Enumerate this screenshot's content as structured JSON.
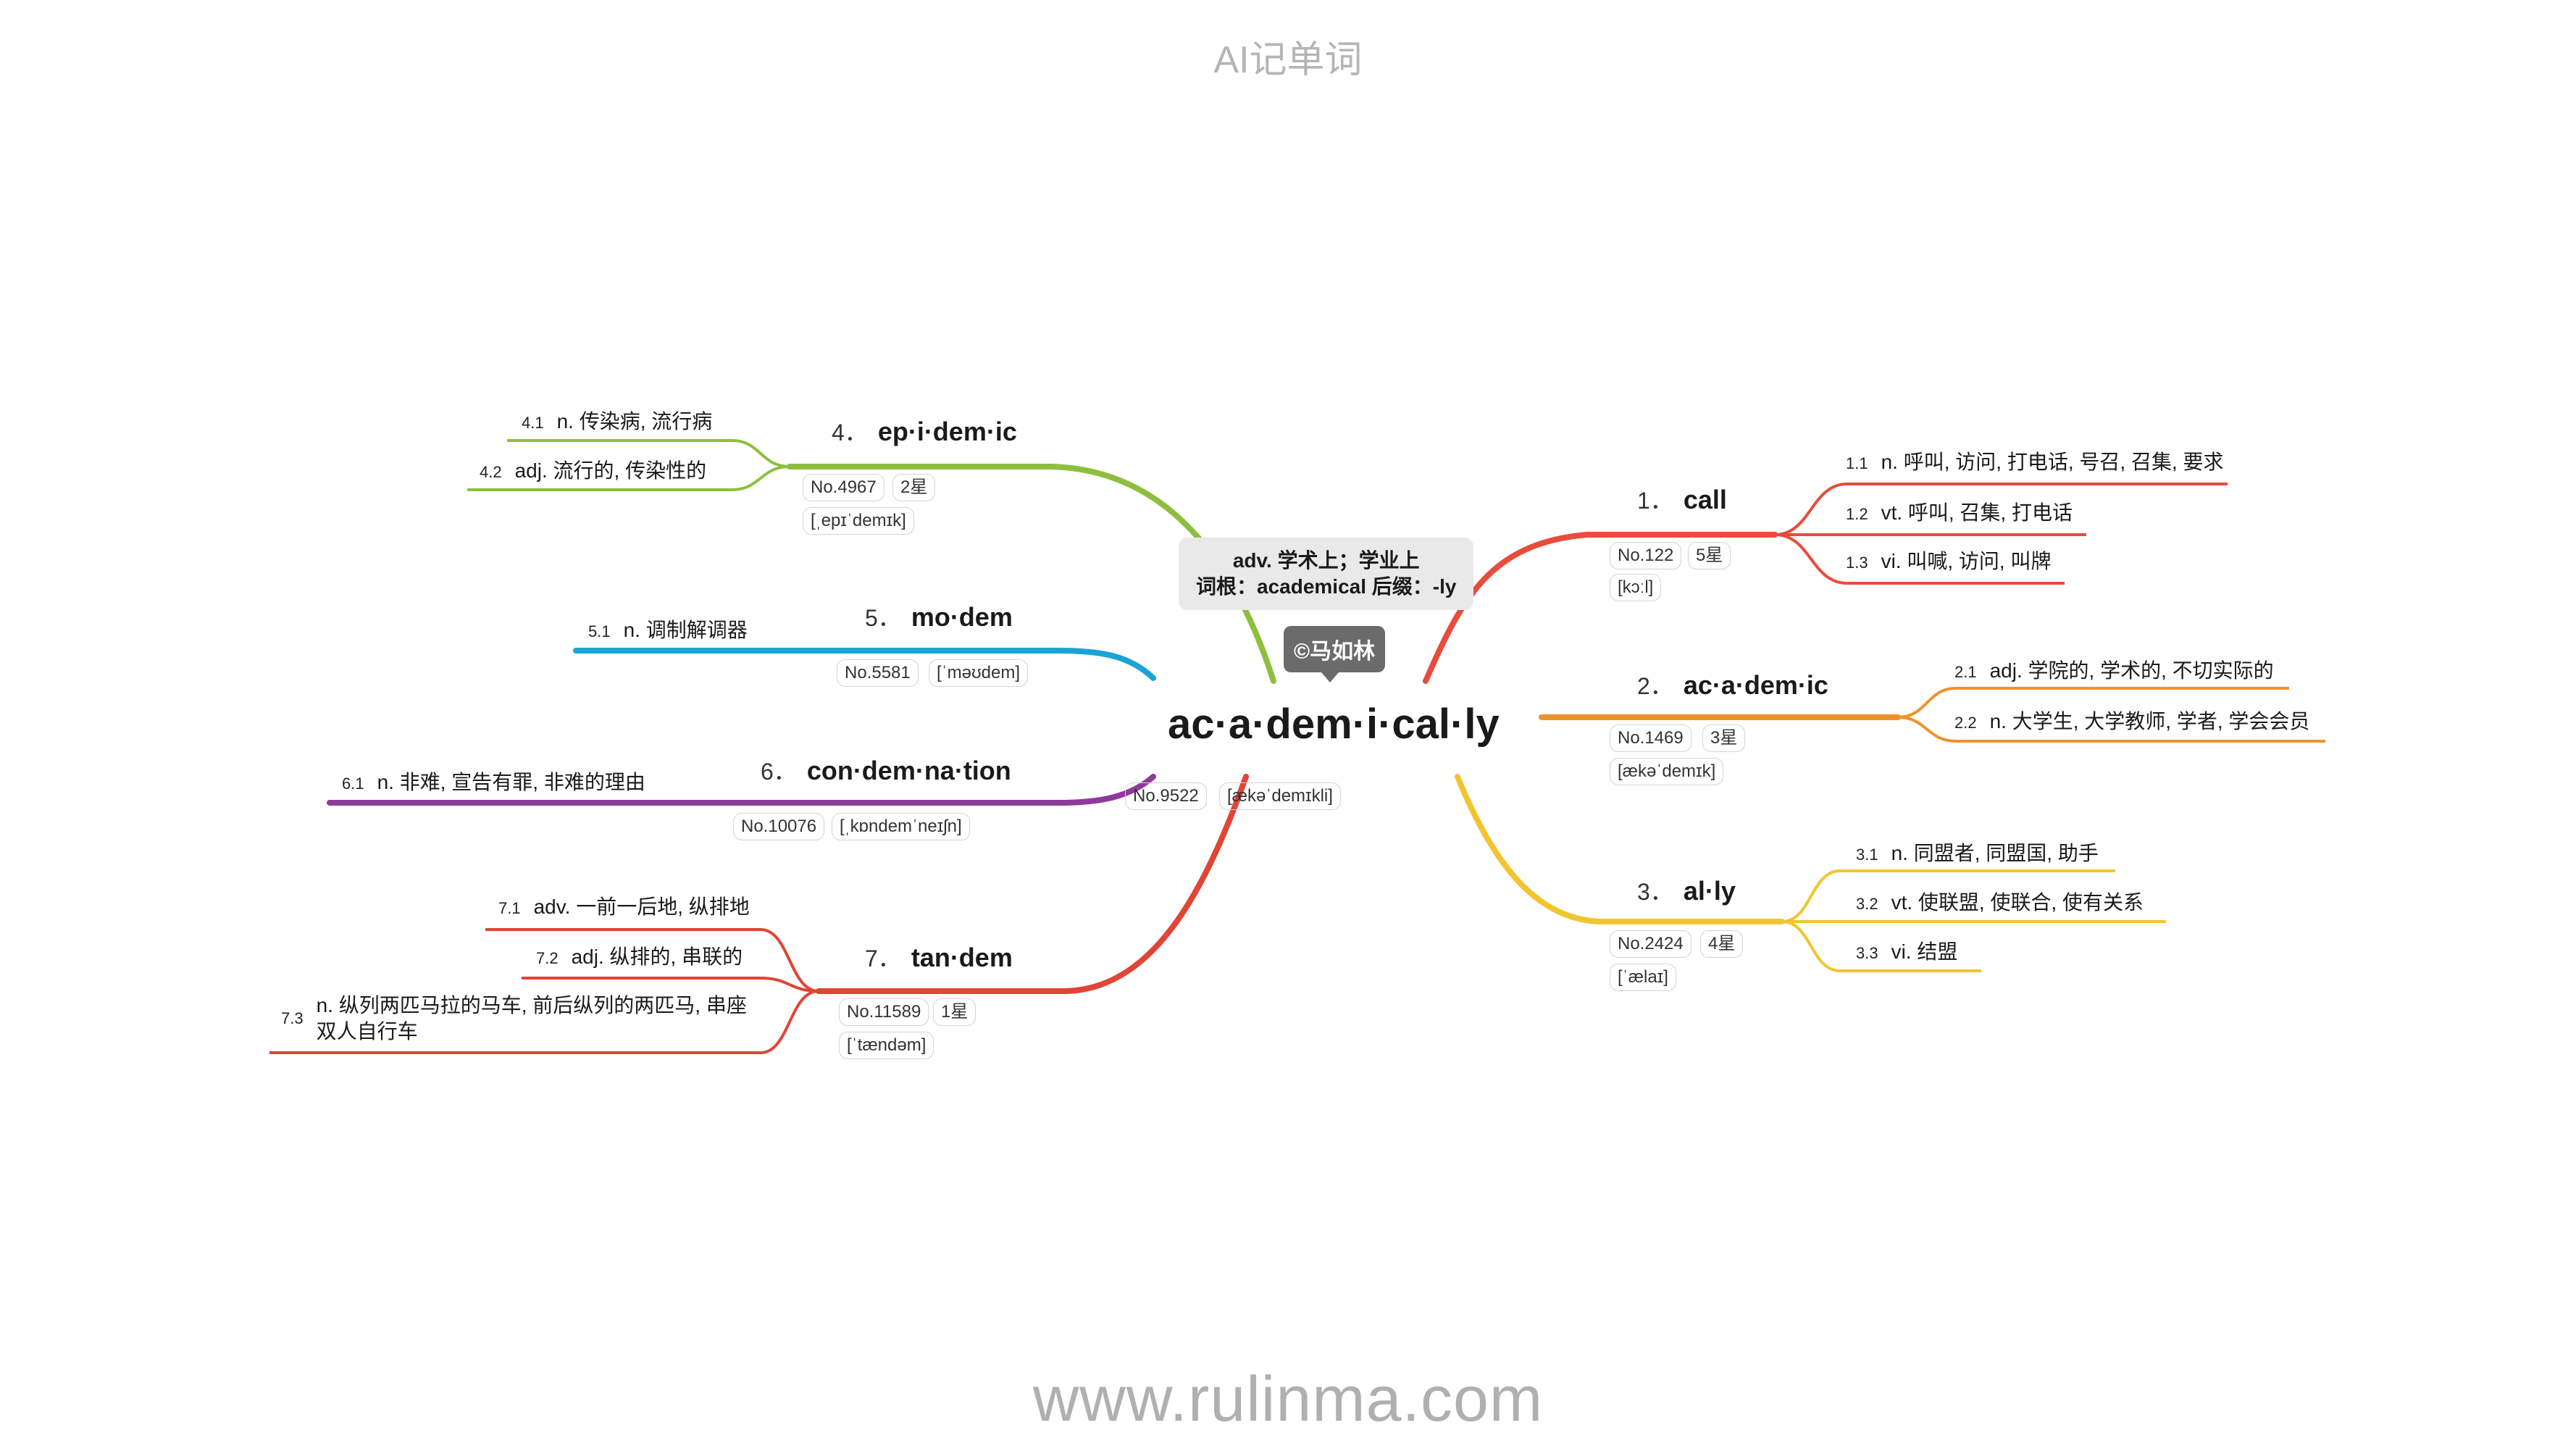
{
  "header": {
    "title": "AI记单词"
  },
  "footer": {
    "url": "www.rulinma.com"
  },
  "center": {
    "word": "ac·a·dem·i·cal·ly",
    "no": "No.9522",
    "phonetic": "[ækəˈdemɪkli]",
    "note_line1": "adv. 学术上；学业上",
    "note_line2": "词根：academical 后缀：-ly",
    "badge": "©马如林"
  },
  "colors": {
    "call": "#e74c3c",
    "academic": "#f0922b",
    "ally": "#f2c52f",
    "epidemic": "#8dbf3f",
    "modem": "#1aa3d6",
    "condemnation": "#8e3a9a",
    "tandem": "#e04535"
  },
  "branches": [
    {
      "num": "1．",
      "word": "call",
      "no": "No.122",
      "stars": "5星",
      "phonetic": "[kɔːl]",
      "defs": [
        {
          "num": "1.1",
          "text": "n. 呼叫, 访问, 打电话, 号召, 召集, 要求"
        },
        {
          "num": "1.2",
          "text": "vt. 呼叫, 召集, 打电话"
        },
        {
          "num": "1.3",
          "text": "vi. 叫喊, 访问, 叫牌"
        }
      ]
    },
    {
      "num": "2．",
      "word": "ac·a·dem·ic",
      "no": "No.1469",
      "stars": "3星",
      "phonetic": "[ækəˈdemɪk]",
      "defs": [
        {
          "num": "2.1",
          "text": "adj. 学院的, 学术的, 不切实际的"
        },
        {
          "num": "2.2",
          "text": "n. 大学生, 大学教师, 学者, 学会会员"
        }
      ]
    },
    {
      "num": "3．",
      "word": "al·ly",
      "no": "No.2424",
      "stars": "4星",
      "phonetic": "[ˈælaɪ]",
      "defs": [
        {
          "num": "3.1",
          "text": "n. 同盟者, 同盟国, 助手"
        },
        {
          "num": "3.2",
          "text": "vt. 使联盟, 使联合, 使有关系"
        },
        {
          "num": "3.3",
          "text": "vi. 结盟"
        }
      ]
    },
    {
      "num": "4．",
      "word": "ep·i·dem·ic",
      "no": "No.4967",
      "stars": "2星",
      "phonetic": "[ˌepɪˈdemɪk]",
      "defs": [
        {
          "num": "4.1",
          "text": "n. 传染病, 流行病"
        },
        {
          "num": "4.2",
          "text": "adj. 流行的, 传染性的"
        }
      ]
    },
    {
      "num": "5．",
      "word": "mo·dem",
      "no": "No.5581",
      "phonetic": "[ˈməʊdem]",
      "defs": [
        {
          "num": "5.1",
          "text": "n. 调制解调器"
        }
      ]
    },
    {
      "num": "6．",
      "word": "con·dem·na·tion",
      "no": "No.10076",
      "phonetic": "[ˌkɒndemˈneɪʃn]",
      "defs": [
        {
          "num": "6.1",
          "text": "n. 非难, 宣告有罪, 非难的理由"
        }
      ]
    },
    {
      "num": "7．",
      "word": "tan·dem",
      "no": "No.11589",
      "stars": "1星",
      "phonetic": "[ˈtændəm]",
      "defs": [
        {
          "num": "7.1",
          "text": "adv. 一前一后地, 纵排地"
        },
        {
          "num": "7.2",
          "text": "adj. 纵排的, 串联的"
        },
        {
          "num": "7.3",
          "text": "n. 纵列两匹马拉的马车, 前后纵列的两匹马, 串座",
          "text2": "双人自行车"
        }
      ]
    }
  ]
}
